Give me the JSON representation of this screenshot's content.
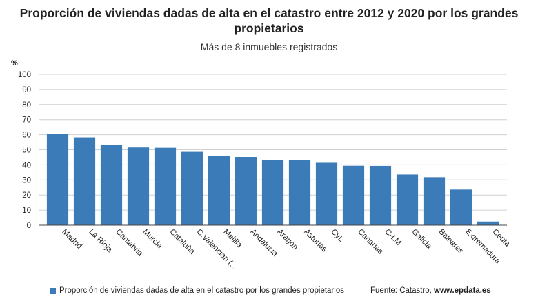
{
  "header": {
    "title_line1": "Proporción de viviendas dadas de alta en el catastro entre 2012 y 2020 por los grandes",
    "title_line2": "propietarios",
    "subtitle": "Más de 8 inmuebles registrados"
  },
  "legend": {
    "label": "Proporción de viviendas dadas de alta en el catastro por los grandes propietarios"
  },
  "source": {
    "prefix": "Fuente: Catastro, ",
    "site": "www.epdata.es"
  },
  "colors": {
    "bar": "#3b7cb8",
    "grid": "#d0d0d0",
    "axis": "#444444"
  },
  "chart_data": {
    "type": "bar",
    "title": "Proporción de viviendas dadas de alta en el catastro entre 2012 y 2020 por los grandes propietarios",
    "subtitle": "Más de 8 inmuebles registrados",
    "ylabel": "%",
    "xlabel": "",
    "ylim": [
      0,
      100
    ],
    "yticks": [
      0,
      10,
      20,
      30,
      40,
      50,
      60,
      70,
      80,
      90,
      100
    ],
    "grid": true,
    "legend_position": "bottom-left",
    "categories": [
      "Madrid",
      "La Rioja",
      "Cantabria",
      "Murcia",
      "Cataluña",
      "C.Valencian (...",
      "Melilla",
      "Andalucia",
      "Aragón",
      "Asturias",
      "CyL",
      "Canarias",
      "C-LM",
      "Galicia",
      "Baleares",
      "Extremadura",
      "Ceuta"
    ],
    "series": [
      {
        "name": "Proporción de viviendas dadas de alta en el catastro por los grandes propietarios",
        "values": [
          60.5,
          58.2,
          53.3,
          51.5,
          51.3,
          48.6,
          45.7,
          45.2,
          43.3,
          43.2,
          41.8,
          39.4,
          39.3,
          33.6,
          31.8,
          23.6,
          2.4
        ]
      }
    ]
  }
}
